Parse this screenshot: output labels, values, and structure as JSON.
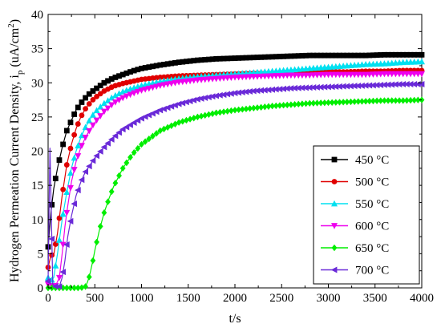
{
  "chart_data": {
    "type": "line",
    "title": "",
    "xlabel": "t/s",
    "ylabel_main": "Hydrogen Permeation Current Density, i",
    "ylabel_sub": "p",
    "ylabel_unit": " (uA/cm",
    "ylabel_sup": "2",
    "ylabel_close": ")",
    "xlim": [
      0,
      4000
    ],
    "ylim": [
      0,
      40
    ],
    "xticks": [
      "0",
      "500",
      "1000",
      "1500",
      "2000",
      "2500",
      "3000",
      "3500",
      "4000"
    ],
    "yticks": [
      "0",
      "5",
      "10",
      "15",
      "20",
      "25",
      "30",
      "35",
      "40"
    ],
    "grid": false,
    "legend_position": "bottom-right",
    "series": [
      {
        "name": "450 °C",
        "color": "#000000",
        "marker": "square",
        "x": [
          0,
          30,
          60,
          100,
          150,
          200,
          250,
          300,
          350,
          400,
          450,
          500,
          600,
          700,
          800,
          900,
          1000,
          1200,
          1400,
          1600,
          1800,
          2000,
          2200,
          2400,
          2600,
          2800,
          3000,
          3200,
          3400,
          3600,
          3800,
          4000
        ],
        "y": [
          6,
          11,
          14.5,
          17.5,
          20.5,
          23,
          24.5,
          26,
          27,
          27.8,
          28.5,
          29,
          30,
          30.7,
          31.2,
          31.7,
          32.1,
          32.6,
          33,
          33.3,
          33.5,
          33.6,
          33.7,
          33.8,
          33.9,
          34,
          34,
          34,
          34,
          34.1,
          34.1,
          34.1
        ]
      },
      {
        "name": "500 °C",
        "color": "#e00000",
        "marker": "circle",
        "x": [
          0,
          30,
          60,
          100,
          150,
          200,
          250,
          300,
          350,
          400,
          450,
          500,
          600,
          700,
          800,
          900,
          1000,
          1200,
          1400,
          1600,
          1800,
          2000,
          2200,
          2400,
          2600,
          2800,
          3000,
          3200,
          3400,
          3600,
          3800,
          4000
        ],
        "y": [
          3,
          4.8,
          4.8,
          8,
          13.5,
          18,
          21,
          23.3,
          25,
          26.2,
          27.1,
          27.8,
          28.8,
          29.5,
          29.9,
          30.2,
          30.5,
          30.8,
          31,
          31.1,
          31.2,
          31.3,
          31.4,
          31.4,
          31.5,
          31.5,
          31.6,
          31.6,
          31.7,
          31.7,
          31.8,
          31.8
        ]
      },
      {
        "name": "550 °C",
        "color": "#00e0f0",
        "marker": "triangle-up",
        "x": [
          0,
          30,
          60,
          100,
          150,
          200,
          250,
          300,
          350,
          400,
          450,
          500,
          600,
          700,
          800,
          900,
          1000,
          1200,
          1400,
          1600,
          1800,
          2000,
          2200,
          2400,
          2600,
          2800,
          3000,
          3200,
          3400,
          3600,
          3800,
          4000
        ],
        "y": [
          1.5,
          1,
          1.5,
          5,
          10,
          14,
          17.5,
          20,
          22,
          23.5,
          24.7,
          25.7,
          27,
          28,
          28.7,
          29.2,
          29.6,
          30.2,
          30.6,
          30.9,
          31.1,
          31.3,
          31.5,
          31.7,
          31.9,
          32.1,
          32.3,
          32.5,
          32.7,
          32.8,
          33,
          33.1
        ]
      },
      {
        "name": "600 °C",
        "color": "#ee00ee",
        "marker": "triangle-down",
        "x": [
          0,
          40,
          80,
          120,
          150,
          180,
          210,
          250,
          300,
          350,
          400,
          450,
          500,
          600,
          700,
          800,
          900,
          1000,
          1200,
          1400,
          1600,
          1800,
          2000,
          2200,
          2400,
          2600,
          2800,
          3000,
          3200,
          3400,
          3600,
          3800,
          4000
        ],
        "y": [
          0.5,
          0.3,
          0.3,
          1.5,
          5,
          9,
          12,
          15.5,
          18.5,
          20.5,
          22,
          23.2,
          24.2,
          25.8,
          27,
          27.8,
          28.4,
          28.9,
          29.6,
          30.1,
          30.4,
          30.6,
          30.8,
          30.9,
          31,
          31.1,
          31.1,
          31.2,
          31.2,
          31.2,
          31.3,
          31.3,
          31.3
        ]
      },
      {
        "name": "650 °C",
        "color": "#00ee00",
        "marker": "diamond",
        "x": [
          0,
          50,
          100,
          150,
          200,
          250,
          300,
          350,
          400,
          420,
          440,
          460,
          480,
          500,
          550,
          600,
          650,
          700,
          800,
          900,
          1000,
          1200,
          1400,
          1600,
          1800,
          2000,
          2200,
          2400,
          2600,
          2800,
          3000,
          3200,
          3400,
          3600,
          3800,
          4000
        ],
        "y": [
          0,
          0,
          0,
          0,
          0,
          0,
          0,
          0,
          0.2,
          0.8,
          1.6,
          2.8,
          4,
          5.5,
          8.5,
          11,
          13,
          14.8,
          17.5,
          19.5,
          21,
          23,
          24.2,
          25,
          25.6,
          26,
          26.3,
          26.6,
          26.8,
          27,
          27.1,
          27.2,
          27.3,
          27.4,
          27.4,
          27.5
        ]
      },
      {
        "name": "700 °C",
        "color": "#6a2ad8",
        "marker": "triangle-left",
        "x": [
          0,
          20,
          50,
          80,
          120,
          150,
          180,
          210,
          250,
          300,
          350,
          400,
          500,
          600,
          700,
          800,
          900,
          1000,
          1200,
          1400,
          1600,
          1800,
          2000,
          2200,
          2400,
          2600,
          2800,
          3000,
          3200,
          3400,
          3600,
          3800,
          4000
        ],
        "y": [
          1,
          20.5,
          0.5,
          0.2,
          0.2,
          1.5,
          4,
          7.5,
          10.5,
          13.5,
          15.5,
          17,
          19,
          20.6,
          22,
          23.2,
          24,
          24.8,
          26,
          26.9,
          27.6,
          28.1,
          28.5,
          28.8,
          29,
          29.2,
          29.3,
          29.4,
          29.5,
          29.6,
          29.7,
          29.8,
          29.8
        ]
      }
    ]
  }
}
